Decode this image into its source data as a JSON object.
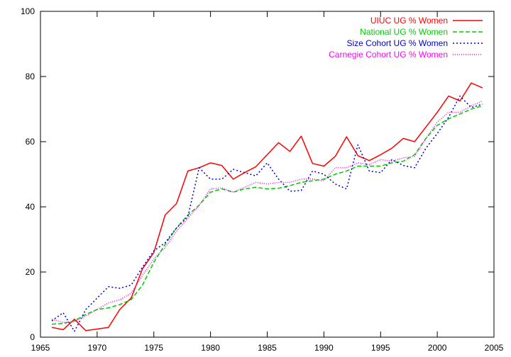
{
  "chart_data": {
    "type": "line",
    "title": "",
    "xlabel": "",
    "ylabel": "",
    "xlim": [
      1965,
      2005
    ],
    "ylim": [
      0,
      100
    ],
    "xticks": [
      1965,
      1970,
      1975,
      1980,
      1985,
      1990,
      1995,
      2000,
      2005
    ],
    "yticks": [
      0,
      20,
      40,
      60,
      80,
      100
    ],
    "grid": false,
    "legend_position": "top-right",
    "series": [
      {
        "name": "UIUC UG % Women",
        "color": "#ff0000",
        "dash": "solid",
        "x": [
          1966,
          1967,
          1968,
          1969,
          1970,
          1971,
          1972,
          1973,
          1974,
          1975,
          1976,
          1977,
          1978,
          1979,
          1980,
          1981,
          1982,
          1983,
          1984,
          1985,
          1986,
          1987,
          1988,
          1989,
          1990,
          1991,
          1992,
          1993,
          1994,
          1995,
          1996,
          1997,
          1998,
          1999,
          2000,
          2001,
          2002,
          2003,
          2004
        ],
        "y": [
          3,
          2.3,
          5.5,
          2,
          2.5,
          3,
          8.5,
          12,
          21,
          26,
          37.5,
          41,
          51,
          52,
          53.5,
          52.7,
          48.5,
          50.5,
          52.3,
          56,
          59.7,
          57,
          61.7,
          53.3,
          52.5,
          55.5,
          61.5,
          55.7,
          54.2,
          56,
          58,
          61,
          60,
          64.5,
          69,
          74,
          72.5,
          78,
          76.5
        ]
      },
      {
        "name": "National UG % Women",
        "color": "#00cc00",
        "dash": "dashed",
        "x": [
          1966,
          1967,
          1968,
          1969,
          1970,
          1971,
          1972,
          1973,
          1974,
          1975,
          1976,
          1977,
          1978,
          1979,
          1980,
          1981,
          1982,
          1983,
          1984,
          1985,
          1986,
          1987,
          1988,
          1989,
          1990,
          1991,
          1992,
          1993,
          1994,
          1995,
          1996,
          1997,
          1998,
          1999,
          2000,
          2001,
          2002,
          2003,
          2004
        ],
        "y": [
          4,
          4.2,
          5,
          7,
          8.5,
          9,
          10,
          11.5,
          16,
          23,
          28.5,
          33.5,
          37.5,
          40.5,
          44.5,
          45.5,
          44.5,
          45.5,
          46,
          45.5,
          45.7,
          46.5,
          47.5,
          48,
          48.5,
          50,
          51,
          52.5,
          52.5,
          52.5,
          53.5,
          54,
          56,
          61,
          65,
          67,
          68.5,
          70,
          71
        ]
      },
      {
        "name": "Size Cohort UG % Women",
        "color": "#0000cc",
        "dash": "dotted",
        "x": [
          1966,
          1967,
          1968,
          1969,
          1970,
          1971,
          1972,
          1973,
          1974,
          1975,
          1976,
          1977,
          1978,
          1979,
          1980,
          1981,
          1982,
          1983,
          1984,
          1985,
          1986,
          1987,
          1988,
          1989,
          1990,
          1991,
          1992,
          1993,
          1994,
          1995,
          1996,
          1997,
          1998,
          1999,
          2000,
          2001,
          2002,
          2003,
          2004
        ],
        "y": [
          5,
          7.5,
          1.8,
          8.5,
          12,
          15.5,
          15,
          16,
          21.5,
          26.5,
          29,
          33.5,
          37,
          52,
          48.5,
          48.5,
          51.5,
          50.5,
          49.5,
          53.5,
          48.5,
          44.8,
          45,
          51,
          50,
          47,
          45.5,
          59,
          51,
          50.5,
          54.5,
          52.7,
          52,
          58,
          62.5,
          67.5,
          74,
          70.5,
          71.5
        ]
      },
      {
        "name": "Carnegie Cohort UG % Women",
        "color": "#ff00ff",
        "dash": "dotted-fine",
        "x": [
          1966,
          1967,
          1968,
          1969,
          1970,
          1971,
          1972,
          1973,
          1974,
          1975,
          1976,
          1977,
          1978,
          1979,
          1980,
          1981,
          1982,
          1983,
          1984,
          1985,
          1986,
          1987,
          1988,
          1989,
          1990,
          1991,
          1992,
          1993,
          1994,
          1995,
          1996,
          1997,
          1998,
          1999,
          2000,
          2001,
          2002,
          2003,
          2004
        ],
        "y": [
          5.5,
          4.5,
          4.8,
          6.5,
          8.5,
          10.5,
          11.5,
          13.5,
          19,
          24,
          27.5,
          32.5,
          36.5,
          40.5,
          45.5,
          45.8,
          44.5,
          46,
          47.5,
          47,
          47.5,
          47.5,
          48.5,
          48.5,
          48,
          52,
          52,
          53.5,
          53,
          54.5,
          54,
          55,
          55.5,
          61,
          66,
          69,
          69,
          71,
          72.5
        ]
      }
    ]
  }
}
